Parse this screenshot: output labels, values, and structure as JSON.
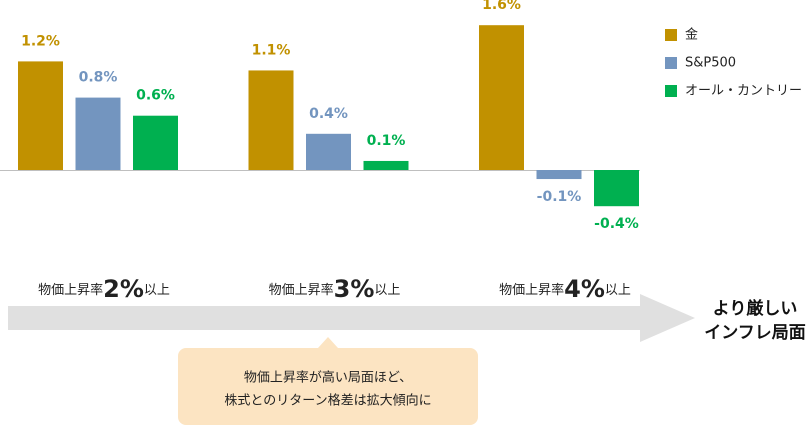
{
  "chart_data": {
    "type": "bar",
    "categories": [
      "物価上昇率2%以上",
      "物価上昇率3%以上",
      "物価上昇率4%以上"
    ],
    "series": [
      {
        "name": "金",
        "color": "#c19100",
        "values": [
          1.2,
          1.1,
          1.6
        ],
        "value_labels": [
          "1.2%",
          "1.1%",
          "1.6%"
        ]
      },
      {
        "name": "S&P500",
        "color": "#7395bf",
        "values": [
          0.8,
          0.4,
          -0.1
        ],
        "value_labels": [
          "0.8%",
          "0.4%",
          "-0.1%"
        ]
      },
      {
        "name": "オール・カントリー",
        "color": "#00b050",
        "values": [
          0.6,
          0.1,
          -0.4
        ],
        "value_labels": [
          "0.6%",
          "0.1%",
          "-0.4%"
        ]
      }
    ],
    "legend": "right",
    "arrow_label": [
      "より厳しい",
      "インフレ局面"
    ],
    "callout": [
      "物価上昇率が高い局面ほど、",
      "株式とのリターン格差は拡大傾向に"
    ]
  }
}
